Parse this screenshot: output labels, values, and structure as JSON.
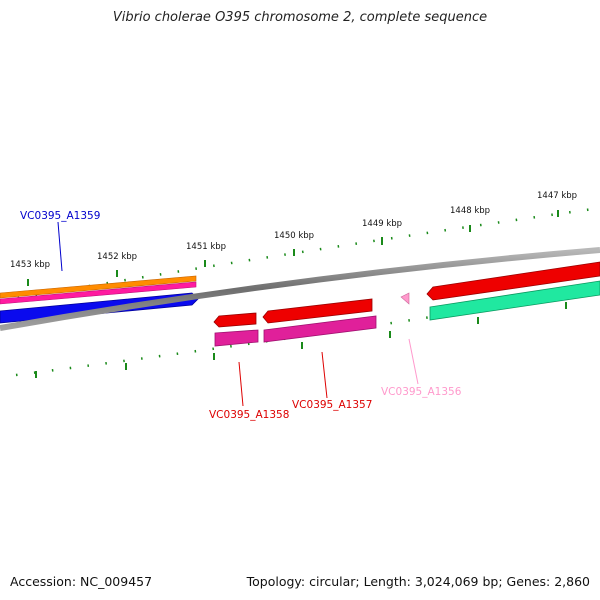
{
  "title": "Vibrio cholerae O395 chromosome 2, complete sequence",
  "footer": {
    "accession": "Accession: NC_009457",
    "summary": "Topology: circular; Length: 3,024,069 bp; Genes: 2,860"
  },
  "ticks": [
    {
      "label": "1453 kbp"
    },
    {
      "label": "1452 kbp"
    },
    {
      "label": "1451 kbp"
    },
    {
      "label": "1450 kbp"
    },
    {
      "label": "1449 kbp"
    },
    {
      "label": "1448 kbp"
    },
    {
      "label": "1447 kbp"
    }
  ],
  "genes": [
    {
      "label": "VC0395_A1359",
      "color": "#0000cc"
    },
    {
      "label": "VC0395_A1358",
      "color": "#dd0000"
    },
    {
      "label": "VC0395_A1357",
      "color": "#dd0000"
    },
    {
      "label": "VC0395_A1356",
      "color": "#ff99cc"
    }
  ],
  "colors": {
    "backbone": "#8a8a8a",
    "tick": "#1a8a1a",
    "gene_red": "#ee0000",
    "gene_magenta": "#e0209a",
    "gene_blue": "#0000ee",
    "gene_orange": "#ff8c00",
    "gene_green": "#20e8a0",
    "gene_pink": "#ff99cc"
  }
}
